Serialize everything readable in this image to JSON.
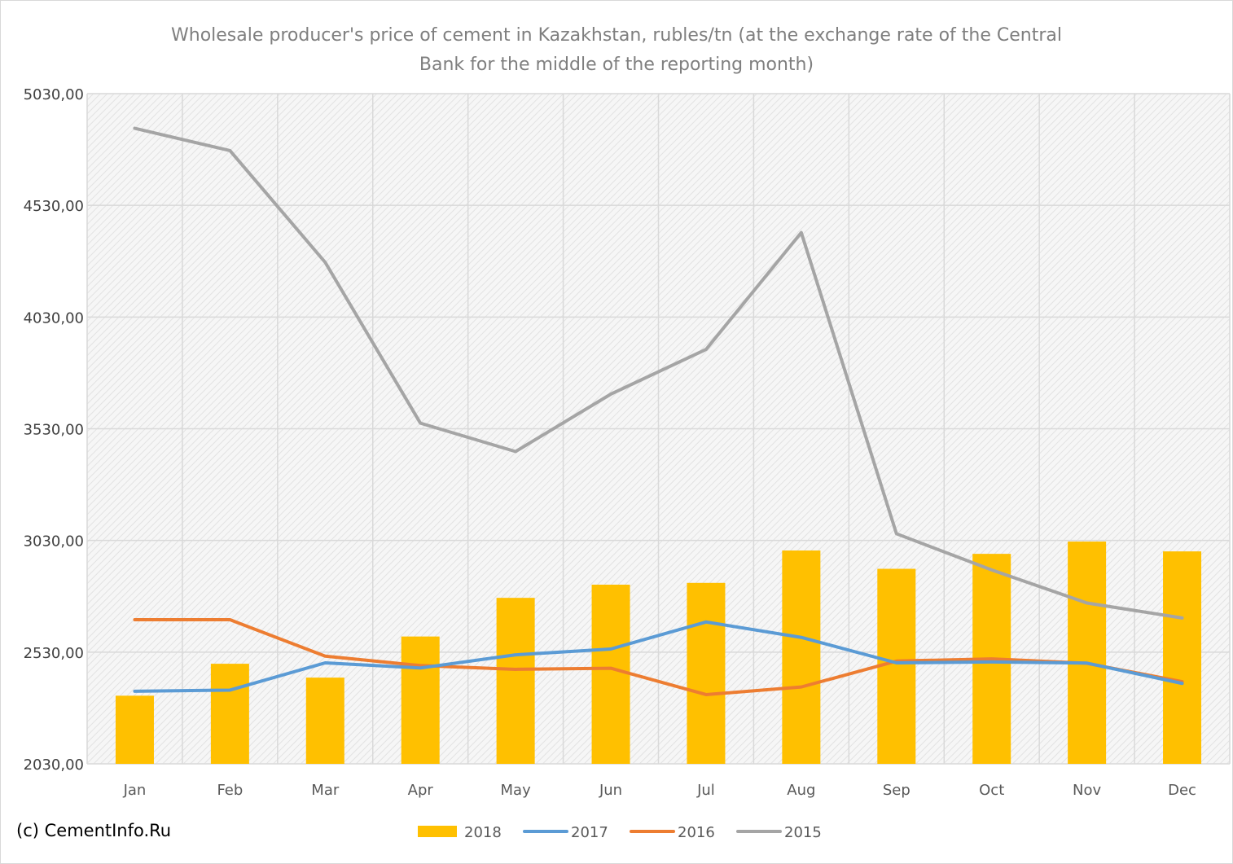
{
  "chart_data": {
    "type": "bar+line",
    "title_lines": [
      "Wholesale producer's price of cement in Kazakhstan, rubles/tn (at the exchange rate of the Central",
      "Bank for the middle of the reporting month)"
    ],
    "categories": [
      "Jan",
      "Feb",
      "Mar",
      "Apr",
      "May",
      "Jun",
      "Jul",
      "Aug",
      "Sep",
      "Oct",
      "Nov",
      "Dec"
    ],
    "ylim": [
      2030,
      5030
    ],
    "yticks": [
      {
        "value": 2030,
        "label": "2030,00"
      },
      {
        "value": 2530,
        "label": "2530,00"
      },
      {
        "value": 3030,
        "label": "3030,00"
      },
      {
        "value": 3530,
        "label": "3530,00"
      },
      {
        "value": 4030,
        "label": "4030,00"
      },
      {
        "value": 4530,
        "label": "4530,00"
      },
      {
        "value": 5030,
        "label": "5030,00"
      }
    ],
    "grid": true,
    "legend_position": "bottom",
    "bar_series": {
      "name": "2018",
      "color": "#ffc000",
      "values": [
        2335,
        2478,
        2416,
        2600,
        2773,
        2832,
        2840,
        2985,
        2903,
        2970,
        3025,
        2981
      ]
    },
    "line_series": [
      {
        "name": "2017",
        "color": "#5b9bd5",
        "values": [
          2355,
          2360,
          2482,
          2459,
          2518,
          2544,
          2665,
          2596,
          2482,
          2486,
          2481,
          2390
        ]
      },
      {
        "name": "2016",
        "color": "#ed7d31",
        "values": [
          2675,
          2675,
          2512,
          2470,
          2453,
          2458,
          2340,
          2374,
          2490,
          2500,
          2480,
          2398
        ]
      },
      {
        "name": "2015",
        "color": "#a5a5a5",
        "values": [
          4875,
          4775,
          4275,
          3555,
          3428,
          3685,
          3885,
          4408,
          3060,
          2898,
          2750,
          2683
        ]
      }
    ]
  },
  "credit": "(c) CementInfo.Ru"
}
